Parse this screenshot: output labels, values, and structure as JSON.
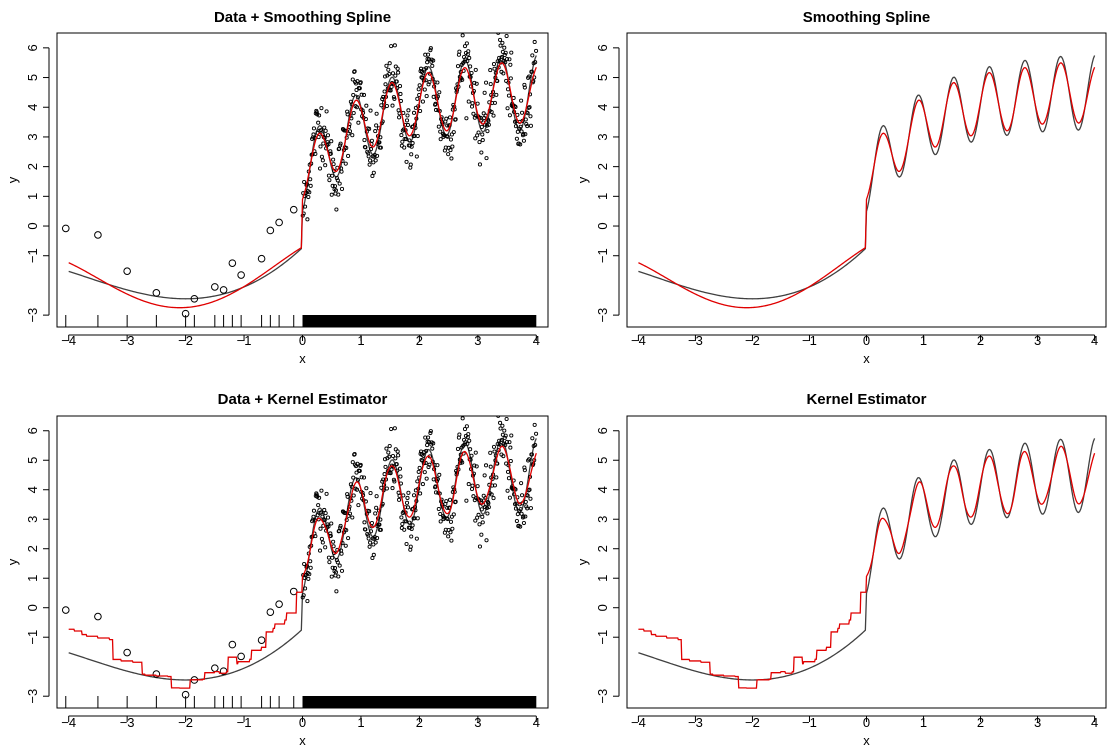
{
  "colors": {
    "data_points": "#000000",
    "true_curve": "#404040",
    "fit_curve": "#e00000",
    "axes": "#000000"
  },
  "chart_data": [
    {
      "type": "scatter",
      "title": "Data + Smoothing Spline",
      "xlabel": "x",
      "ylabel": "y",
      "xlim": [
        -4.2,
        4.2
      ],
      "ylim": [
        -3.4,
        6.5
      ],
      "xticks": [
        -4,
        -3,
        -2,
        -1,
        0,
        1,
        2,
        3,
        4
      ],
      "yticks": [
        -3,
        -1,
        0,
        1,
        2,
        3,
        4,
        5,
        6
      ],
      "legend": "none",
      "grid": false,
      "rug": true,
      "series": [
        {
          "role": "observations",
          "sparse_points": [
            [
              -4.05,
              -0.08
            ],
            [
              -3.5,
              -0.3
            ],
            [
              -3.0,
              -1.52
            ],
            [
              -2.5,
              -2.25
            ],
            [
              -2.0,
              -2.95
            ],
            [
              -1.85,
              -2.45
            ],
            [
              -1.5,
              -2.05
            ],
            [
              -1.35,
              -2.15
            ],
            [
              -1.2,
              -1.25
            ],
            [
              -1.05,
              -1.65
            ],
            [
              -0.7,
              -1.1
            ],
            [
              -0.55,
              -0.15
            ],
            [
              -0.4,
              0.12
            ],
            [
              -0.15,
              0.55
            ]
          ],
          "dense_x_range": [
            0,
            4
          ]
        },
        {
          "role": "true function"
        },
        {
          "role": "smoothing spline fit"
        }
      ]
    },
    {
      "type": "line",
      "title": "Smoothing Spline",
      "xlabel": "x",
      "ylabel": "y",
      "xlim": [
        -4.2,
        4.2
      ],
      "ylim": [
        -3.4,
        6.5
      ],
      "xticks": [
        -4,
        -3,
        -2,
        -1,
        0,
        1,
        2,
        3,
        4
      ],
      "yticks": [
        -3,
        -1,
        0,
        1,
        2,
        3,
        4,
        5,
        6
      ],
      "legend": "none",
      "grid": false,
      "series": [
        {
          "role": "true function"
        },
        {
          "role": "smoothing spline fit"
        }
      ]
    },
    {
      "type": "scatter",
      "title": "Data + Kernel Estimator",
      "xlabel": "x",
      "ylabel": "y",
      "xlim": [
        -4.2,
        4.2
      ],
      "ylim": [
        -3.4,
        6.5
      ],
      "xticks": [
        -4,
        -3,
        -2,
        -1,
        0,
        1,
        2,
        3,
        4
      ],
      "yticks": [
        -3,
        -1,
        0,
        1,
        2,
        3,
        4,
        5,
        6
      ],
      "legend": "none",
      "grid": false,
      "rug": true,
      "series": [
        {
          "role": "observations"
        },
        {
          "role": "true function"
        },
        {
          "role": "kernel estimator fit"
        }
      ]
    },
    {
      "type": "line",
      "title": "Kernel Estimator",
      "xlabel": "x",
      "ylabel": "y",
      "xlim": [
        -4.2,
        4.2
      ],
      "ylim": [
        -3.4,
        6.5
      ],
      "xticks": [
        -4,
        -3,
        -2,
        -1,
        0,
        1,
        2,
        3,
        4
      ],
      "yticks": [
        -3,
        -1,
        0,
        1,
        2,
        3,
        4,
        5,
        6
      ],
      "legend": "none",
      "grid": false,
      "series": [
        {
          "role": "true function"
        },
        {
          "role": "kernel estimator fit"
        }
      ]
    }
  ]
}
